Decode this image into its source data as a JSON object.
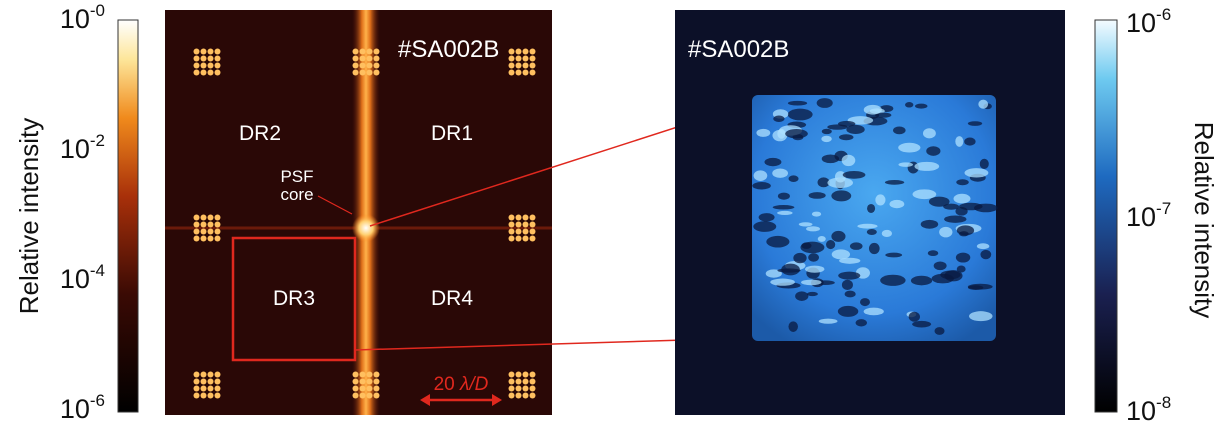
{
  "left_panel": {
    "colorbar": {
      "label": "Relative intensity",
      "ticks": [
        {
          "base": "10",
          "exponent": "-0"
        },
        {
          "base": "10",
          "exponent": "-2"
        },
        {
          "base": "10",
          "exponent": "-4"
        },
        {
          "base": "10",
          "exponent": "-6"
        }
      ]
    },
    "image": {
      "title": "#SA002B",
      "regions": [
        "DR2",
        "DR1",
        "DR3",
        "DR4"
      ],
      "annotation": [
        "PSF",
        "core"
      ],
      "scale_bar": {
        "number": "20",
        "unit": "λ/D"
      }
    }
  },
  "right_panel": {
    "image": {
      "title": "#SA002B"
    },
    "colorbar": {
      "label": "Relative intensity",
      "ticks": [
        {
          "base": "10",
          "exponent": "-6"
        },
        {
          "base": "10",
          "exponent": "-7"
        },
        {
          "base": "10",
          "exponent": "-8"
        }
      ]
    }
  }
}
